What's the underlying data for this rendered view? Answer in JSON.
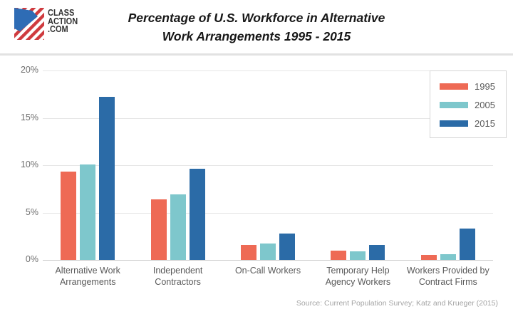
{
  "header": {
    "logo": {
      "line1": "CLASS",
      "line2": "ACTION",
      "line3": ".COM"
    },
    "title_lines": [
      "Percentage of U.S. Workforce in Alternative",
      "Work Arrangements 1995 - 2015"
    ]
  },
  "chart_data": {
    "type": "bar",
    "title": "Percentage of U.S. Workforce in Alternative Work Arrangements 1995 - 2015",
    "categories": [
      [
        "Alternative Work",
        "Arrangements"
      ],
      [
        "Independent",
        "Contractors"
      ],
      [
        "On-Call Workers"
      ],
      [
        "Temporary Help",
        "Agency Workers"
      ],
      [
        "Workers Provided by",
        "Contract Firms"
      ]
    ],
    "series": [
      {
        "name": "1995",
        "color": "#ee6a55",
        "values": [
          9.3,
          6.4,
          1.6,
          1.0,
          0.5
        ]
      },
      {
        "name": "2005",
        "color": "#7ec7cc",
        "values": [
          10.1,
          6.9,
          1.7,
          0.9,
          0.6
        ]
      },
      {
        "name": "2015",
        "color": "#2b6ba7",
        "values": [
          17.2,
          9.6,
          2.8,
          1.6,
          3.3
        ]
      }
    ],
    "ylim": [
      0,
      20
    ],
    "yticks": [
      20,
      15,
      10,
      5,
      0
    ],
    "ytick_suffix": "%",
    "grid": true,
    "legend_position": "top-right"
  },
  "colors": {
    "accent_red": "#cf3a3e",
    "accent_blue": "#2e6cb5",
    "gridline": "#e5e5e5",
    "axis_line": "#c9c9c9"
  },
  "footer": {
    "source": "Source: Current Population Survey; Katz and Krueger (2015)"
  }
}
